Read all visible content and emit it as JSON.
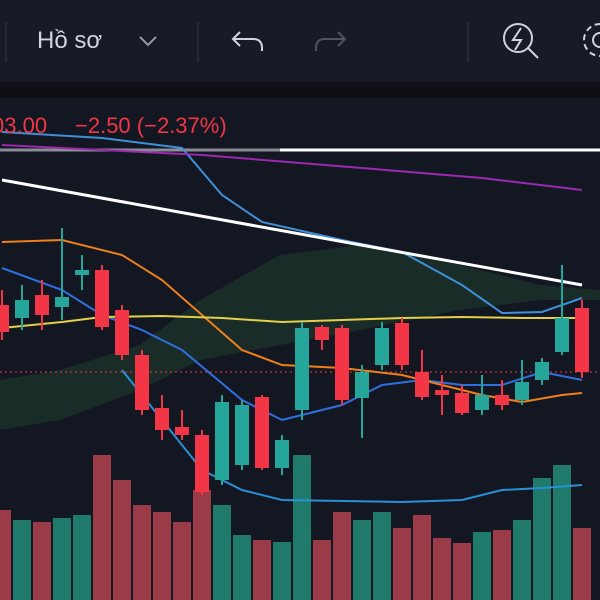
{
  "toolbar": {
    "profile_label": "Hồ sơ"
  },
  "chart_data": {
    "type": "candlestick",
    "price": "03.00",
    "change": "−2.50 (−2.37%)",
    "ylim": [
      0,
      500
    ],
    "open": [
      295,
      282,
      305,
      293,
      325,
      330,
      290,
      245,
      192,
      173,
      165,
      120,
      135,
      203,
      132,
      190,
      273,
      272,
      202,
      235,
      277,
      228,
      210,
      207,
      190,
      205,
      200,
      220,
      248,
      292
    ],
    "high": [
      310,
      315,
      320,
      372,
      345,
      335,
      295,
      250,
      205,
      190,
      170,
      205,
      200,
      205,
      165,
      278,
      275,
      275,
      235,
      278,
      282,
      250,
      225,
      215,
      225,
      220,
      240,
      242,
      335,
      300
    ],
    "low": [
      260,
      270,
      270,
      280,
      310,
      270,
      240,
      185,
      160,
      160,
      105,
      115,
      130,
      130,
      125,
      180,
      250,
      195,
      162,
      230,
      230,
      200,
      185,
      185,
      185,
      190,
      195,
      215,
      245,
      222
    ],
    "close": [
      268,
      300,
      285,
      303,
      330,
      273,
      245,
      190,
      170,
      165,
      108,
      198,
      195,
      132,
      160,
      272,
      260,
      200,
      228,
      272,
      235,
      203,
      205,
      187,
      205,
      195,
      218,
      238,
      282,
      228
    ],
    "up_color": "#26a69a",
    "down_color": "#f23645",
    "volume": {
      "ylim": [
        0,
        500
      ],
      "values": [
        90,
        80,
        78,
        82,
        85,
        145,
        120,
        95,
        88,
        78,
        110,
        95,
        65,
        60,
        58,
        145,
        60,
        88,
        80,
        88,
        72,
        85,
        62,
        57,
        68,
        70,
        80,
        122,
        135,
        72
      ],
      "up_color": "#1f7a6c",
      "down_color": "#9c3b48"
    },
    "series": [
      {
        "color": "#3e8fd8",
        "x": [
          0,
          5,
          9,
          11,
          13,
          17,
          20,
          23,
          25,
          27,
          29
        ],
        "values": [
          468,
          462,
          452,
          405,
          378,
          360,
          348,
          315,
          287,
          288,
          302
        ]
      },
      {
        "color": "#2f6fe0",
        "x": [
          0,
          3,
          5,
          7,
          9,
          12,
          14,
          17,
          19,
          21,
          23,
          25,
          27,
          29
        ],
        "values": [
          332,
          310,
          285,
          270,
          250,
          200,
          180,
          195,
          215,
          220,
          215,
          215,
          228,
          220
        ]
      },
      {
        "color": "#2a8fd6",
        "x": [
          6,
          8,
          10,
          12,
          14,
          20,
          23,
          25,
          27,
          29
        ],
        "values": [
          230,
          180,
          130,
          110,
          100,
          98,
          100,
          110,
          112,
          115
        ]
      },
      {
        "color": "#ef7f1a",
        "x": [
          0,
          3,
          6,
          8,
          10,
          12,
          14,
          17,
          20,
          22,
          24,
          26,
          28,
          29
        ],
        "values": [
          358,
          360,
          345,
          320,
          285,
          250,
          235,
          232,
          225,
          215,
          205,
          198,
          205,
          207
        ]
      },
      {
        "color": "#e3d04a",
        "x": [
          0,
          3,
          5,
          8,
          11,
          14,
          17,
          20,
          23,
          26,
          29
        ],
        "values": [
          272,
          278,
          283,
          284,
          282,
          278,
          280,
          282,
          283,
          282,
          282
        ]
      },
      {
        "color": "#9c27b0",
        "x": [
          0,
          10,
          18,
          24,
          29
        ],
        "values": [
          455,
          445,
          432,
          422,
          410
        ]
      },
      {
        "color": "#ffffff",
        "x": [
          0,
          29
        ],
        "values": [
          420,
          315
        ]
      }
    ]
  }
}
